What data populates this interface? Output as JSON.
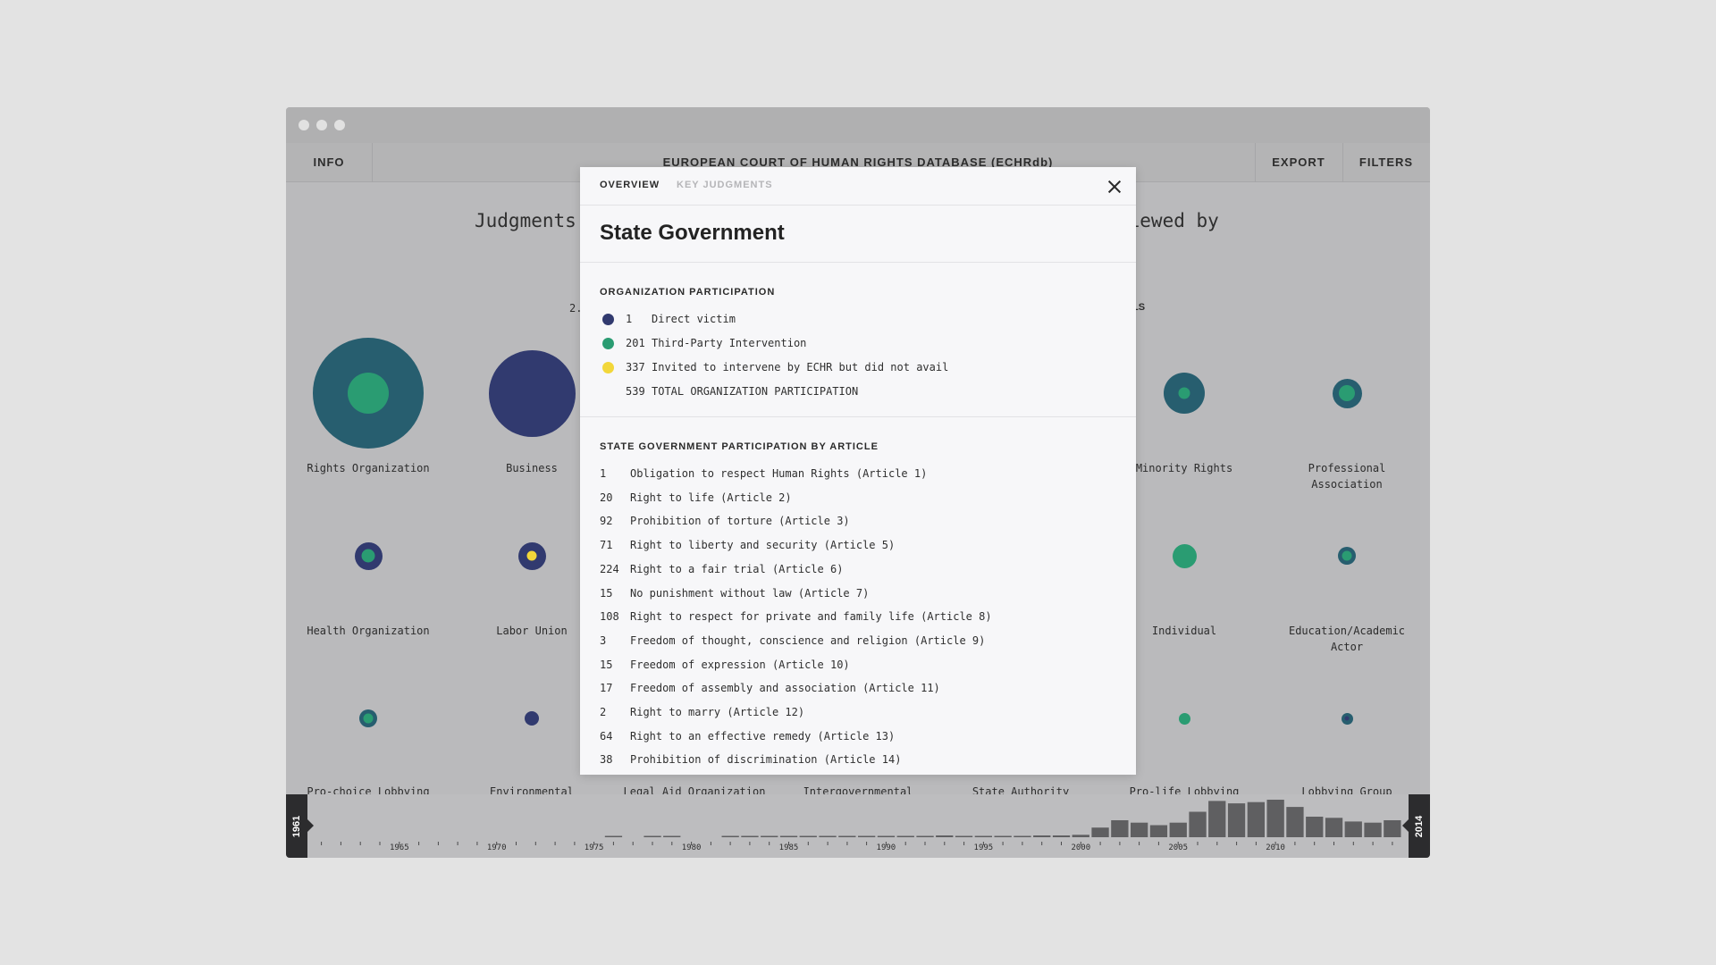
{
  "window": {
    "traffic_lights": [
      "dot",
      "dot",
      "dot"
    ]
  },
  "appbar": {
    "info_label": "INFO",
    "title": "EUROPEAN COURT OF HUMAN RIGHTS DATABASE (ECHRdb)",
    "export_label": "EXPORT",
    "filters_label": "FILTERS"
  },
  "background": {
    "heading_left": "Judgments",
    "heading_right": "viewed by",
    "fragment_left": "2.",
    "fragment_right": "LS",
    "colors": {
      "teal": "#275e6f",
      "navy": "#313a6f",
      "green": "#2a9c72",
      "yellow": "#f2d73a"
    },
    "organizations": [
      {
        "label": "Rights Organization",
        "outer": 0.68,
        "inner": 0.25,
        "outer_color": "teal",
        "inner_color": "green"
      },
      {
        "label": "Business",
        "outer": 0.53,
        "inner": 0.0,
        "outer_color": "navy",
        "inner_color": "green"
      },
      {
        "label": "Minority Rights",
        "outer": 0.25,
        "inner": 0.07,
        "outer_color": "teal",
        "inner_color": "green"
      },
      {
        "label": "Professional Association",
        "outer": 0.18,
        "inner": 0.1,
        "outer_color": "teal",
        "inner_color": "green"
      },
      {
        "label": "Health Organization",
        "outer": 0.17,
        "inner": 0.08,
        "outer_color": "navy",
        "inner_color": "green"
      },
      {
        "label": "Labor Union",
        "outer": 0.17,
        "inner": 0.06,
        "outer_color": "navy",
        "inner_color": "yellow"
      },
      {
        "label": "Individual",
        "outer": 0.15,
        "inner": 0.0,
        "outer_color": "green",
        "inner_color": "green"
      },
      {
        "label": "Education/Academic Actor",
        "outer": 0.11,
        "inner": 0.06,
        "outer_color": "teal",
        "inner_color": "green"
      },
      {
        "label": "Pro-choice Lobbying",
        "outer": 0.11,
        "inner": 0.06,
        "outer_color": "teal",
        "inner_color": "green"
      },
      {
        "label": "Environmental",
        "outer": 0.09,
        "inner": 0.0,
        "outer_color": "navy",
        "inner_color": "green"
      },
      {
        "label": "Legal Aid Organization",
        "outer": 0.0,
        "inner": 0.0,
        "outer_color": "navy",
        "inner_color": "green"
      },
      {
        "label": "Intergovernmental",
        "outer": 0.0,
        "inner": 0.0,
        "outer_color": "navy",
        "inner_color": "green"
      },
      {
        "label": "State Authority",
        "outer": 0.0,
        "inner": 0.0,
        "outer_color": "navy",
        "inner_color": "green"
      },
      {
        "label": "Pro-life Lobbying",
        "outer": 0.07,
        "inner": 0.0,
        "outer_color": "green",
        "inner_color": "green"
      },
      {
        "label": "Lobbying Group",
        "outer": 0.07,
        "inner": 0.03,
        "outer_color": "teal",
        "inner_color": "navy"
      }
    ]
  },
  "timeline": {
    "start_label": "1961",
    "end_label": "2014",
    "bar_color": "#5f5f61",
    "year_labels": [
      "1965",
      "1970",
      "1975",
      "1980",
      "1985",
      "1990",
      "1995",
      "2000",
      "2005",
      "2010"
    ],
    "bars": [
      {
        "year": 1961,
        "value": 0
      },
      {
        "year": 1962,
        "value": 0
      },
      {
        "year": 1963,
        "value": 0
      },
      {
        "year": 1964,
        "value": 0
      },
      {
        "year": 1965,
        "value": 0
      },
      {
        "year": 1966,
        "value": 0
      },
      {
        "year": 1967,
        "value": 0
      },
      {
        "year": 1968,
        "value": 0
      },
      {
        "year": 1969,
        "value": 0
      },
      {
        "year": 1970,
        "value": 0
      },
      {
        "year": 1971,
        "value": 0
      },
      {
        "year": 1972,
        "value": 0
      },
      {
        "year": 1973,
        "value": 0
      },
      {
        "year": 1974,
        "value": 0
      },
      {
        "year": 1975,
        "value": 0
      },
      {
        "year": 1976,
        "value": 1
      },
      {
        "year": 1977,
        "value": 0
      },
      {
        "year": 1978,
        "value": 1
      },
      {
        "year": 1979,
        "value": 1
      },
      {
        "year": 1980,
        "value": 0
      },
      {
        "year": 1981,
        "value": 0
      },
      {
        "year": 1982,
        "value": 0.5
      },
      {
        "year": 1983,
        "value": 0.5
      },
      {
        "year": 1984,
        "value": 0.5
      },
      {
        "year": 1985,
        "value": 0.5
      },
      {
        "year": 1986,
        "value": 0.5
      },
      {
        "year": 1987,
        "value": 0.5
      },
      {
        "year": 1988,
        "value": 0.5
      },
      {
        "year": 1989,
        "value": 0.5
      },
      {
        "year": 1990,
        "value": 0.5
      },
      {
        "year": 1991,
        "value": 0.5
      },
      {
        "year": 1992,
        "value": 1
      },
      {
        "year": 1993,
        "value": 1.5
      },
      {
        "year": 1994,
        "value": 1
      },
      {
        "year": 1995,
        "value": 1
      },
      {
        "year": 1996,
        "value": 1
      },
      {
        "year": 1997,
        "value": 1
      },
      {
        "year": 1998,
        "value": 1.5
      },
      {
        "year": 1999,
        "value": 1.5
      },
      {
        "year": 2000,
        "value": 2
      },
      {
        "year": 2001,
        "value": 8
      },
      {
        "year": 2002,
        "value": 14
      },
      {
        "year": 2003,
        "value": 12
      },
      {
        "year": 2004,
        "value": 10
      },
      {
        "year": 2005,
        "value": 12
      },
      {
        "year": 2006,
        "value": 21
      },
      {
        "year": 2007,
        "value": 30
      },
      {
        "year": 2008,
        "value": 28
      },
      {
        "year": 2009,
        "value": 29
      },
      {
        "year": 2010,
        "value": 31
      },
      {
        "year": 2011,
        "value": 25
      },
      {
        "year": 2012,
        "value": 17
      },
      {
        "year": 2013,
        "value": 16
      },
      {
        "year": 2014,
        "value": 13
      },
      {
        "year": 2015,
        "value": 12
      },
      {
        "year": 2016,
        "value": 14
      }
    ]
  },
  "modal": {
    "tab_overview": "OVERVIEW",
    "tab_key_judgments": "KEY JUDGMENTS",
    "title": "State Government",
    "participation_heading": "ORGANIZATION PARTICIPATION",
    "participation": [
      {
        "count": "1",
        "text": "Direct victim",
        "color": "#313a6f"
      },
      {
        "count": "201",
        "text": "Third-Party Intervention",
        "color": "#2a9c72"
      },
      {
        "count": "337",
        "text": "Invited to intervene by ECHR but did not avail",
        "color": "#f2d73a"
      },
      {
        "count": "539",
        "text": "TOTAL ORGANIZATION PARTICIPATION",
        "color": ""
      }
    ],
    "article_heading": "STATE GOVERNMENT PARTICIPATION BY ARTICLE",
    "articles": [
      {
        "count": "1",
        "text": "Obligation to respect Human Rights (Article 1)"
      },
      {
        "count": "20",
        "text": "Right to life (Article 2)"
      },
      {
        "count": "92",
        "text": "Prohibition of torture (Article 3)"
      },
      {
        "count": "71",
        "text": "Right to liberty and security (Article 5)"
      },
      {
        "count": "224",
        "text": "Right to a fair trial (Article 6)"
      },
      {
        "count": "15",
        "text": "No punishment without law (Article 7)"
      },
      {
        "count": "108",
        "text": "Right to respect for private and family life (Article 8)"
      },
      {
        "count": "3",
        "text": "Freedom of thought, conscience and religion (Article 9)"
      },
      {
        "count": "15",
        "text": "Freedom of expression (Article 10)"
      },
      {
        "count": "17",
        "text": "Freedom of assembly and association (Article 11)"
      },
      {
        "count": "2",
        "text": "Right to marry (Article 12)"
      },
      {
        "count": "64",
        "text": "Right to an effective remedy (Article 13)"
      },
      {
        "count": "38",
        "text": "Prohibition of discrimination (Article 14)"
      }
    ]
  }
}
